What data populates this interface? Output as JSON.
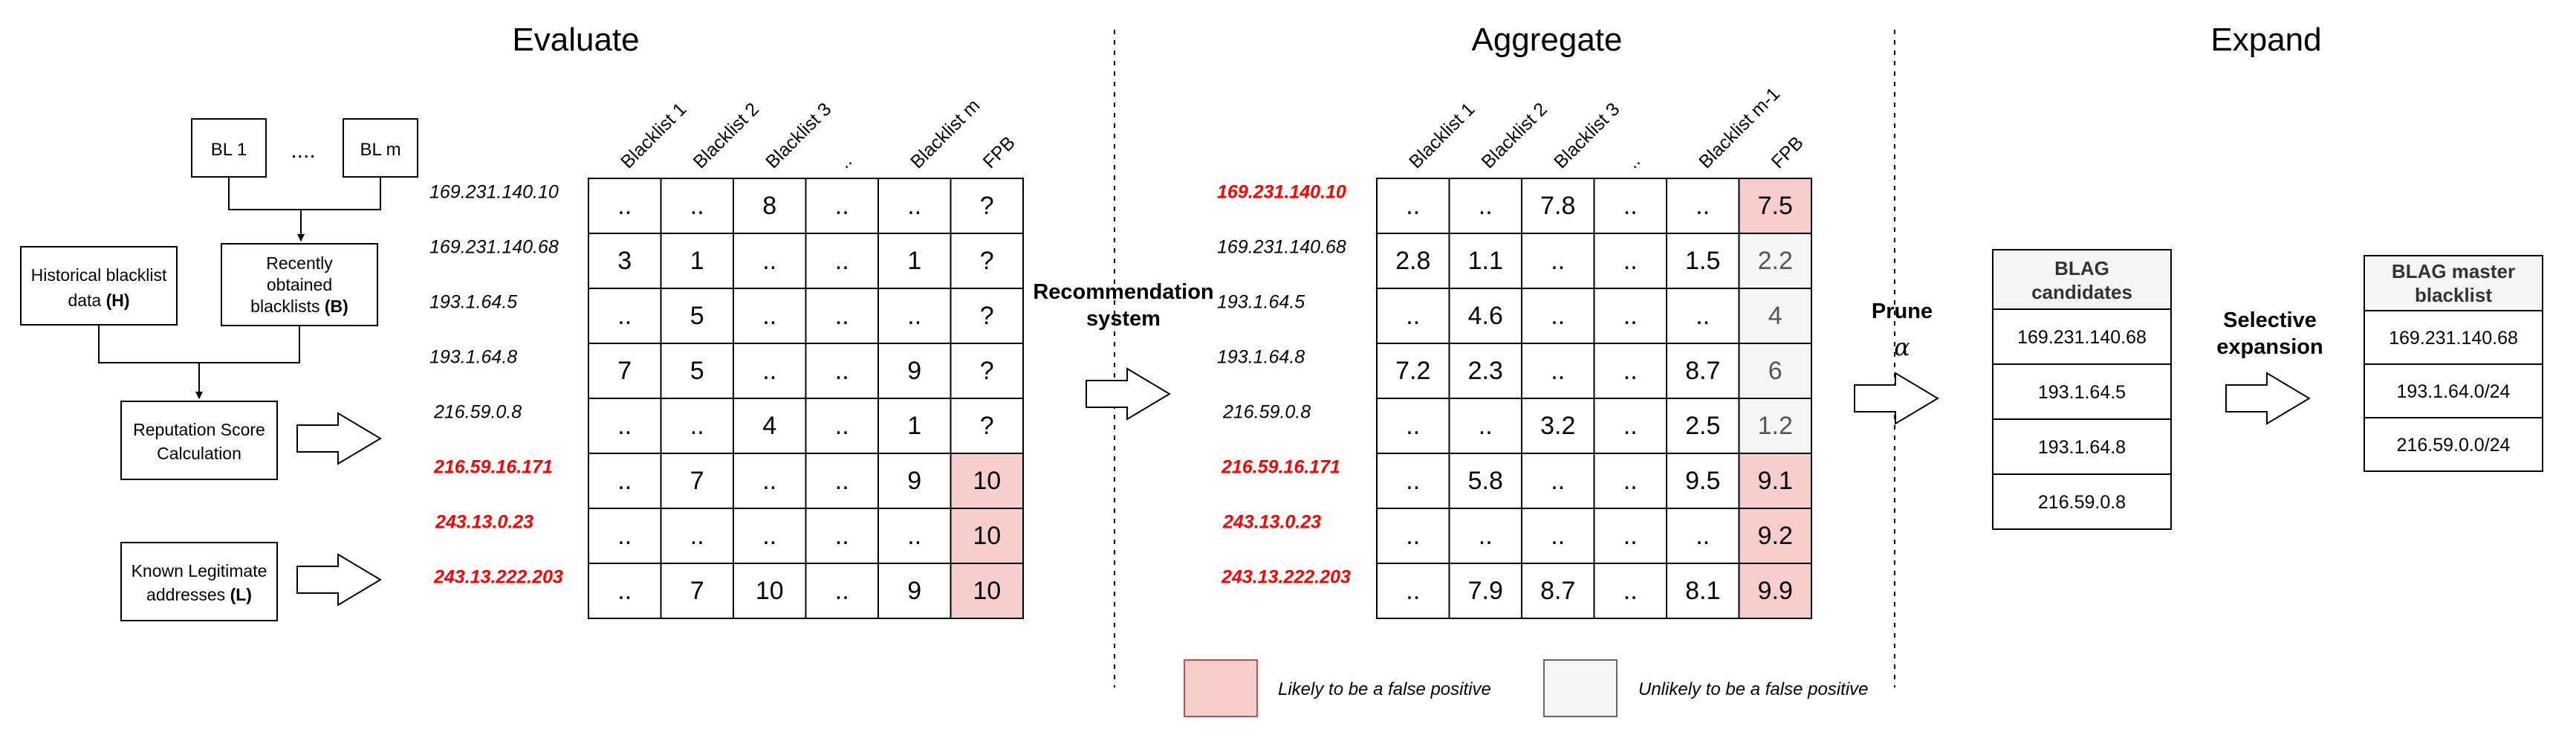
{
  "sections": {
    "evaluate": "Evaluate",
    "aggregate": "Aggregate",
    "expand": "Expand"
  },
  "inputs": {
    "bl1": "BL 1",
    "dots": "....",
    "blm": "BL m",
    "historical_line1": "Historical blacklist",
    "historical_line2": "data ",
    "historical_bold": "(H)",
    "recent_line1": "Recently",
    "recent_line2": "obtained",
    "recent_line3": "blacklists ",
    "recent_bold": "(B)",
    "reputation_line1": "Reputation Score",
    "reputation_line2": "Calculation",
    "known_line1": "Known Legitimate",
    "known_line2": "addresses ",
    "known_bold": "(L)"
  },
  "evaluate_table": {
    "columns": [
      "Blacklist 1",
      "Blacklist 2",
      "Blacklist 3",
      "..",
      "Blacklist m",
      "FPB"
    ],
    "rows": [
      {
        "ip": "169.231.140.10",
        "red": false,
        "cells": [
          "..",
          "..",
          "8",
          "..",
          "..",
          "?"
        ],
        "fpb": "none"
      },
      {
        "ip": "169.231.140.68",
        "red": false,
        "cells": [
          "3",
          "1",
          "..",
          "..",
          "1",
          "?"
        ],
        "fpb": "none"
      },
      {
        "ip": "193.1.64.5",
        "red": false,
        "cells": [
          "..",
          "5",
          "..",
          "..",
          "..",
          "?"
        ],
        "fpb": "none"
      },
      {
        "ip": "193.1.64.8",
        "red": false,
        "cells": [
          "7",
          "5",
          "..",
          "..",
          "9",
          "?"
        ],
        "fpb": "none"
      },
      {
        "ip": "216.59.0.8",
        "red": false,
        "cells": [
          "..",
          "..",
          "4",
          "..",
          "1",
          "?"
        ],
        "fpb": "none"
      },
      {
        "ip": "216.59.16.171",
        "red": true,
        "cells": [
          "..",
          "7",
          "..",
          "..",
          "9",
          "10"
        ],
        "fpb": "likely"
      },
      {
        "ip": "243.13.0.23",
        "red": true,
        "cells": [
          "..",
          "..",
          "..",
          "..",
          "..",
          "10"
        ],
        "fpb": "likely"
      },
      {
        "ip": "243.13.222.203",
        "red": true,
        "cells": [
          "..",
          "7",
          "10",
          "..",
          "9",
          "10"
        ],
        "fpb": "likely"
      }
    ]
  },
  "recommendation": {
    "line1": "Recommendation",
    "line2": "system"
  },
  "aggregate_table": {
    "columns": [
      "Blacklist 1",
      "Blacklist 2",
      "Blacklist 3",
      "..",
      "Blacklist m-1",
      "FPB"
    ],
    "rows": [
      {
        "ip": "169.231.140.10",
        "red": true,
        "cells": [
          "..",
          "..",
          "7.8",
          "..",
          "..",
          "7.5"
        ],
        "fpb": "likely"
      },
      {
        "ip": "169.231.140.68",
        "red": false,
        "cells": [
          "2.8",
          "1.1",
          "..",
          "..",
          "1.5",
          "2.2"
        ],
        "fpb": "unlikely"
      },
      {
        "ip": "193.1.64.5",
        "red": false,
        "cells": [
          "..",
          "4.6",
          "..",
          "..",
          "..",
          "4"
        ],
        "fpb": "unlikely"
      },
      {
        "ip": "193.1.64.8",
        "red": false,
        "cells": [
          "7.2",
          "2.3",
          "..",
          "..",
          "8.7",
          "6"
        ],
        "fpb": "unlikely"
      },
      {
        "ip": "216.59.0.8",
        "red": false,
        "cells": [
          "..",
          "..",
          "3.2",
          "..",
          "2.5",
          "1.2"
        ],
        "fpb": "unlikely"
      },
      {
        "ip": "216.59.16.171",
        "red": true,
        "cells": [
          "..",
          "5.8",
          "..",
          "..",
          "9.5",
          "9.1"
        ],
        "fpb": "likely"
      },
      {
        "ip": "243.13.0.23",
        "red": true,
        "cells": [
          "..",
          "..",
          "..",
          "..",
          "..",
          "9.2"
        ],
        "fpb": "likely"
      },
      {
        "ip": "243.13.222.203",
        "red": true,
        "cells": [
          "..",
          "7.9",
          "8.7",
          "..",
          "8.1",
          "9.9"
        ],
        "fpb": "likely"
      }
    ]
  },
  "legend": {
    "likely": "Likely to be a false positive",
    "unlikely": "Unlikely to be a false positive"
  },
  "prune": {
    "label": "Prune",
    "symbol": "α"
  },
  "candidates": {
    "title_line1": "BLAG",
    "title_line2": "candidates",
    "items": [
      "169.231.140.68",
      "193.1.64.5",
      "193.1.64.8",
      "216.59.0.8"
    ]
  },
  "selective": {
    "line1": "Selective",
    "line2": "expansion"
  },
  "master": {
    "title_line1": "BLAG master",
    "title_line2": "blacklist",
    "items": [
      "169.231.140.68",
      "193.1.64.0/24",
      "216.59.0.0/24"
    ]
  },
  "colors": {
    "likely": "#f8cecc",
    "unlikely": "#f5f5f5",
    "red_text": "#ff0000",
    "header_fill": "#f5f5f5"
  }
}
